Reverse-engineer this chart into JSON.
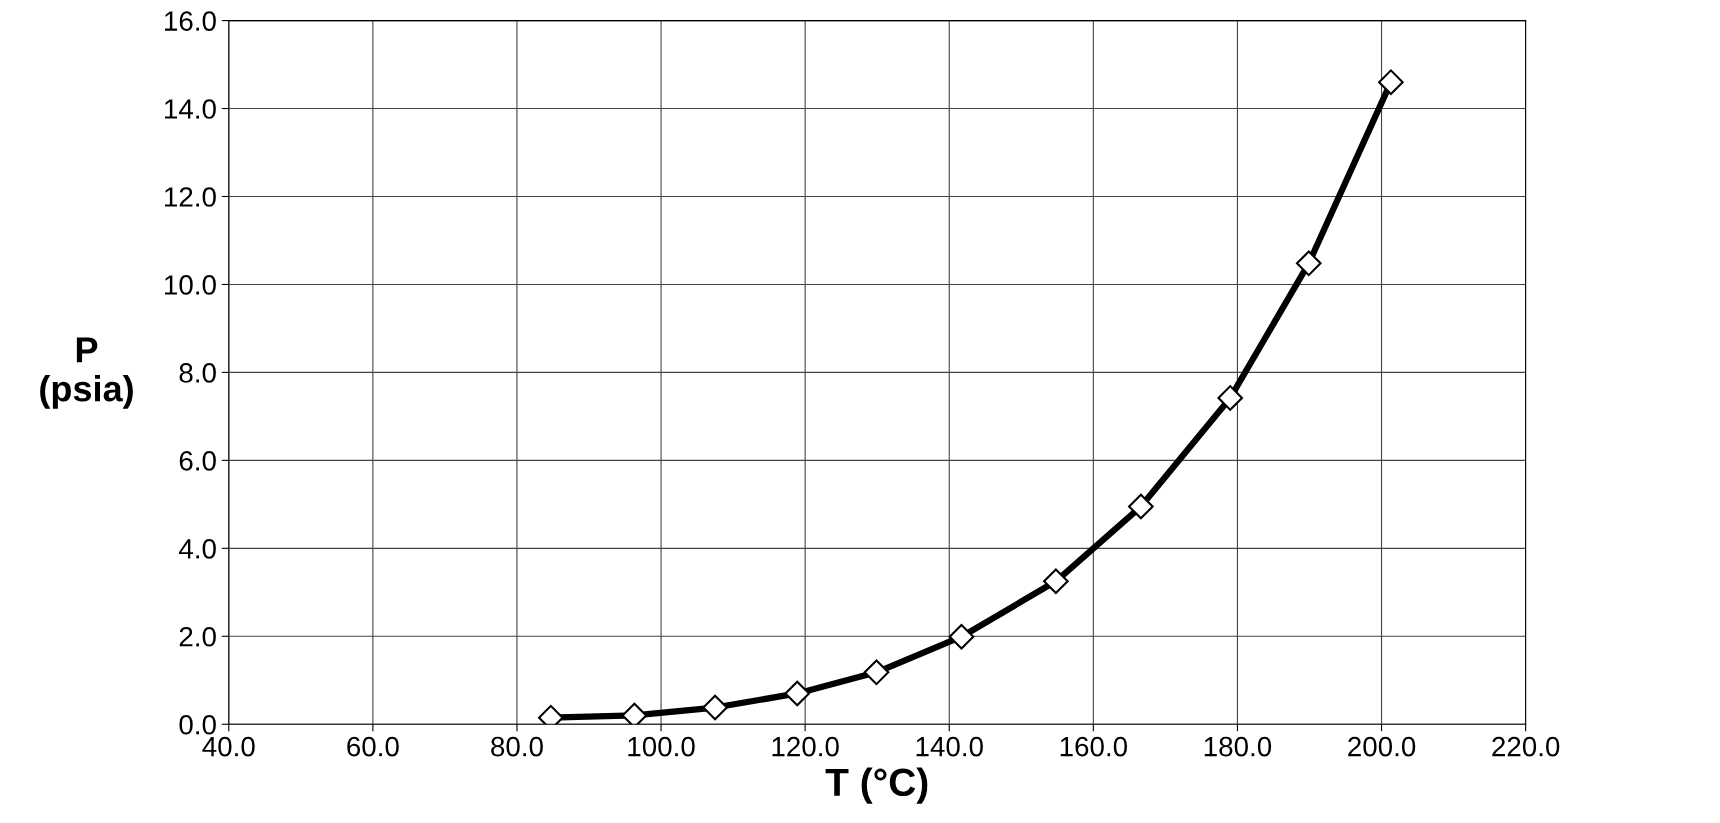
{
  "chart_data": {
    "type": "line",
    "xlabel": "T (°C)",
    "ylabel": "P\n(psia)",
    "x": [
      84.7,
      96.3,
      107.5,
      118.9,
      129.9,
      141.7,
      154.8,
      166.6,
      179.0,
      189.9,
      201.3
    ],
    "series": [
      {
        "color": "#000000",
        "values": [
          0.15,
          0.2,
          0.38,
          0.7,
          1.18,
          1.99,
          3.25,
          4.95,
          7.42,
          10.48,
          14.6
        ]
      }
    ],
    "xlim": [
      40,
      220
    ],
    "ylim": [
      0,
      16
    ],
    "xticks": [
      {
        "value": 40,
        "label": "40.0"
      },
      {
        "value": 60,
        "label": "60.0"
      },
      {
        "value": 80,
        "label": "80.0"
      },
      {
        "value": 100,
        "label": "100.0"
      },
      {
        "value": 120,
        "label": "120.0"
      },
      {
        "value": 140,
        "label": "140.0"
      },
      {
        "value": 160,
        "label": "160.0"
      },
      {
        "value": 180,
        "label": "180.0"
      },
      {
        "value": 200,
        "label": "200.0"
      },
      {
        "value": 220,
        "label": "220.0"
      }
    ],
    "yticks": [
      {
        "value": 0,
        "label": "0.0"
      },
      {
        "value": 2,
        "label": "2.0"
      },
      {
        "value": 4,
        "label": "4.0"
      },
      {
        "value": 6,
        "label": "6.0"
      },
      {
        "value": 8,
        "label": "8.0"
      },
      {
        "value": 10,
        "label": "10.0"
      },
      {
        "value": 12,
        "label": "12.0"
      },
      {
        "value": 14,
        "label": "14.0"
      },
      {
        "value": 16,
        "label": "16.0"
      }
    ],
    "grid": true,
    "marker": "diamond",
    "line_style": "solid",
    "legend": false
  }
}
